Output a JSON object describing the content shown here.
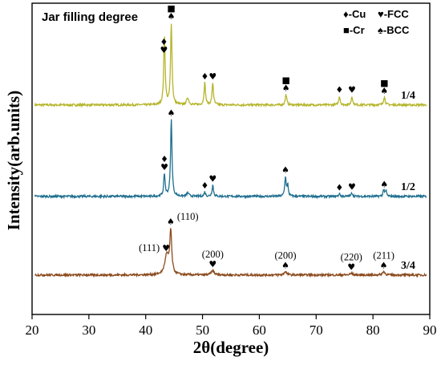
{
  "chart_data": {
    "type": "line",
    "title": "Jar filling degree",
    "xlabel": "2θ(degree)",
    "ylabel": "Intensity(arb.units)",
    "xlim": [
      20,
      90
    ],
    "xticks": [
      20,
      30,
      40,
      50,
      60,
      70,
      80,
      90
    ],
    "grid": false,
    "legend": {
      "placement": "top-right",
      "entries": [
        {
          "symbol": "♦",
          "label": "-Cu"
        },
        {
          "symbol": "♥",
          "label": "-FCC"
        },
        {
          "symbol": "■",
          "label": "-Cr"
        },
        {
          "symbol": "♠",
          "label": "-BCC"
        }
      ]
    },
    "series": [
      {
        "name": "1/4",
        "color": "#b5b52c",
        "baseline": 0.02,
        "noise": 0.012,
        "peaks": [
          [
            43.3,
            0.78,
            0.3
          ],
          [
            44.5,
            0.92,
            0.3
          ],
          [
            47.4,
            0.08,
            0.45
          ],
          [
            50.4,
            0.25,
            0.3
          ],
          [
            51.8,
            0.25,
            0.3
          ],
          [
            64.7,
            0.12,
            0.3
          ],
          [
            74.1,
            0.1,
            0.3
          ],
          [
            76.3,
            0.1,
            0.3
          ],
          [
            82.0,
            0.09,
            0.35
          ]
        ],
        "markers": [
          {
            "x": 43.2,
            "symbols": "♦♥"
          },
          {
            "x": 44.5,
            "symbols": "■♠"
          },
          {
            "x": 50.4,
            "symbols": "♦"
          },
          {
            "x": 51.8,
            "symbols": "♥"
          },
          {
            "x": 64.7,
            "symbols": "■♠"
          },
          {
            "x": 74.1,
            "symbols": "♦"
          },
          {
            "x": 76.3,
            "symbols": "♥"
          },
          {
            "x": 82.0,
            "symbols": "■♠"
          }
        ]
      },
      {
        "name": "1/2",
        "color": "#1f6f8f",
        "baseline": 0.02,
        "noise": 0.012,
        "peaks": [
          [
            43.3,
            0.25,
            0.3
          ],
          [
            44.5,
            0.87,
            0.3
          ],
          [
            47.4,
            0.04,
            0.45
          ],
          [
            50.4,
            0.05,
            0.3
          ],
          [
            51.8,
            0.13,
            0.3
          ],
          [
            64.6,
            0.22,
            0.3
          ],
          [
            65.0,
            0.12,
            0.25
          ],
          [
            74.1,
            0.03,
            0.3
          ],
          [
            76.3,
            0.04,
            0.3
          ],
          [
            81.9,
            0.08,
            0.3
          ],
          [
            82.3,
            0.06,
            0.25
          ]
        ],
        "markers": [
          {
            "x": 43.3,
            "symbols": "♦♥"
          },
          {
            "x": 44.5,
            "symbols": "♠"
          },
          {
            "x": 50.4,
            "symbols": "♦"
          },
          {
            "x": 51.8,
            "symbols": "♥"
          },
          {
            "x": 64.6,
            "symbols": "♠"
          },
          {
            "x": 74.1,
            "symbols": "♦"
          },
          {
            "x": 76.3,
            "symbols": "♥"
          },
          {
            "x": 82.0,
            "symbols": "♠"
          }
        ]
      },
      {
        "name": "3/4",
        "color": "#8b4a1c",
        "baseline": 0.02,
        "noise": 0.012,
        "peaks": [
          [
            43.7,
            0.22,
            0.8
          ],
          [
            44.4,
            0.48,
            0.4
          ],
          [
            51.8,
            0.05,
            0.6
          ],
          [
            64.6,
            0.04,
            0.5
          ],
          [
            76.2,
            0.02,
            0.5
          ],
          [
            81.9,
            0.04,
            0.5
          ]
        ],
        "markers": [
          {
            "x": 43.6,
            "symbols": "♥",
            "label": "(111)",
            "labelSide": "left"
          },
          {
            "x": 44.4,
            "symbols": "♠",
            "label": "(110)",
            "labelSide": "right"
          },
          {
            "x": 51.8,
            "symbols": "♥",
            "label": "(200)"
          },
          {
            "x": 64.6,
            "symbols": "♠",
            "label": "(200)"
          },
          {
            "x": 76.2,
            "symbols": "♥",
            "label": "(220)"
          },
          {
            "x": 81.9,
            "symbols": "♠",
            "label": "(211)"
          }
        ]
      }
    ]
  }
}
